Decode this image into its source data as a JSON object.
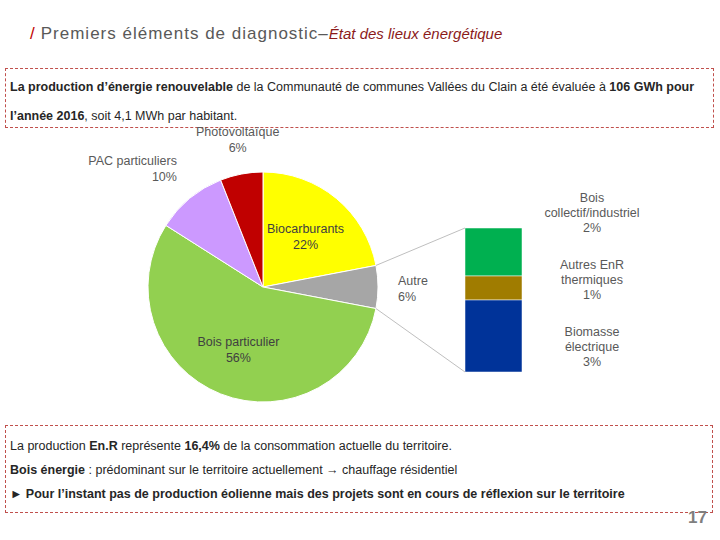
{
  "chart_data": [
    {
      "type": "pie",
      "categories": [
        "Biocarburants",
        "Autre",
        "Bois particulier",
        "PAC particuliers",
        "Photovoltaïque"
      ],
      "values": [
        22,
        6,
        56,
        10,
        6
      ],
      "value_labels": [
        "22%",
        "6%",
        "56%",
        "10%",
        "6%"
      ],
      "colors": [
        "#ffff00",
        "#a6a6a6",
        "#92d050",
        "#cc99ff",
        "#c00000"
      ],
      "data_labels": true
    },
    {
      "type": "bar",
      "stacked": true,
      "tick_labels": false,
      "ylim": [
        0,
        6
      ],
      "data_labels": true,
      "series": [
        {
          "name": "Bois collectif/industriel",
          "color": "#00b050",
          "values": [
            2
          ],
          "value_labels": [
            "2%"
          ]
        },
        {
          "name": "Autres EnR thermiques",
          "color": "#a07c00",
          "values": [
            1
          ],
          "value_labels": [
            "1%"
          ]
        },
        {
          "name": "Biomasse électrique",
          "color": "#003399",
          "values": [
            3
          ],
          "value_labels": [
            "3%"
          ]
        }
      ]
    }
  ],
  "page": {
    "header": {
      "slash": "/",
      "title": "Premiers éléments de diagnostic–",
      "subtitle": "État des lieux énergétique"
    },
    "intro": [
      {
        "text": "La production d’énergie renouvelable",
        "bold": true
      },
      {
        "text": " de la Communauté de communes Vallées du Clain a été évaluée à ",
        "bold": false
      },
      {
        "text": "106 GWh pour l’année 2016",
        "bold": true
      },
      {
        "text": ", soit 4,1 MWh par habitant.",
        "bold": false
      }
    ],
    "notes": [
      [
        {
          "text": "La production ",
          "bold": false
        },
        {
          "text": "En.R",
          "bold": true
        },
        {
          "text": " représente ",
          "bold": false
        },
        {
          "text": "16,4%",
          "bold": true
        },
        {
          "text": " de la consommation actuelle du territoire.",
          "bold": false
        }
      ],
      [
        {
          "text": "Bois énergie",
          "bold": true
        },
        {
          "text": " : prédominant sur le territoire actuellement → chauffage résidentiel",
          "bold": false
        }
      ],
      [
        {
          "text": "► Pour l’instant pas de production éolienne mais des projets sont en cours de réflexion sur le territoire",
          "bold": true
        }
      ]
    ],
    "page_number": "17"
  }
}
